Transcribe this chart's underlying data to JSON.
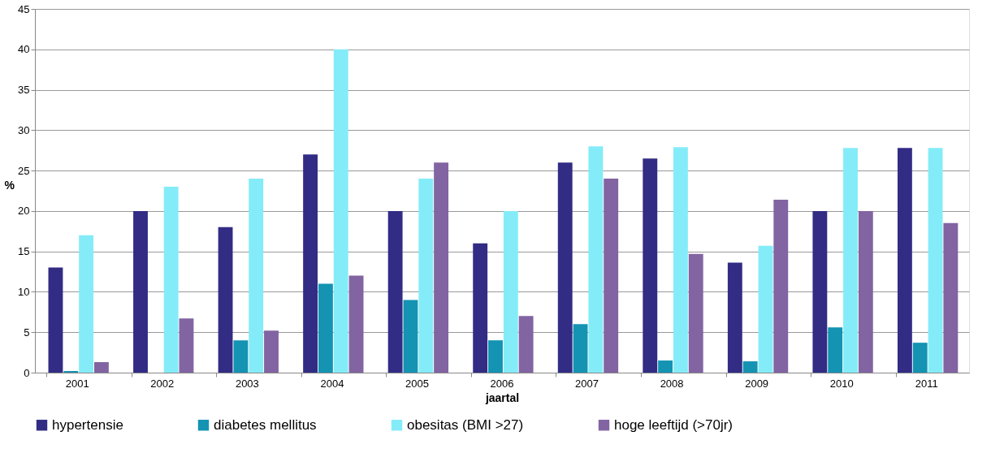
{
  "chart_data": {
    "type": "bar",
    "xlabel": "jaartal",
    "ylabel": "%",
    "categories": [
      "2001",
      "2002",
      "2003",
      "2004",
      "2005",
      "2006",
      "2007",
      "2008",
      "2009",
      "2010",
      "2011"
    ],
    "series": [
      {
        "name": "hypertensie",
        "color": "#322c85",
        "values": [
          13,
          20,
          18,
          27,
          20,
          16,
          26,
          26.5,
          13.6,
          20,
          27.8
        ]
      },
      {
        "name": "diabetes mellitus",
        "color": "#1493b3",
        "values": [
          0.2,
          0,
          4,
          11,
          9,
          4,
          6,
          1.5,
          1.4,
          5.6,
          3.7
        ]
      },
      {
        "name": "obesitas (BMI >27)",
        "color": "#84ecf8",
        "values": [
          17,
          23,
          24,
          40,
          24,
          20,
          28,
          27.9,
          15.7,
          27.8,
          27.8
        ]
      },
      {
        "name": "hoge leeftijd (>70jr)",
        "color": "#8264a2",
        "values": [
          1.3,
          6.7,
          5.2,
          12,
          26,
          7,
          24,
          14.7,
          21.4,
          20,
          18.5
        ]
      }
    ],
    "ylim": [
      0,
      45
    ],
    "yticks": [
      0,
      5,
      10,
      15,
      20,
      25,
      30,
      35,
      40,
      45
    ],
    "grid": "y",
    "legend": "bottom"
  }
}
